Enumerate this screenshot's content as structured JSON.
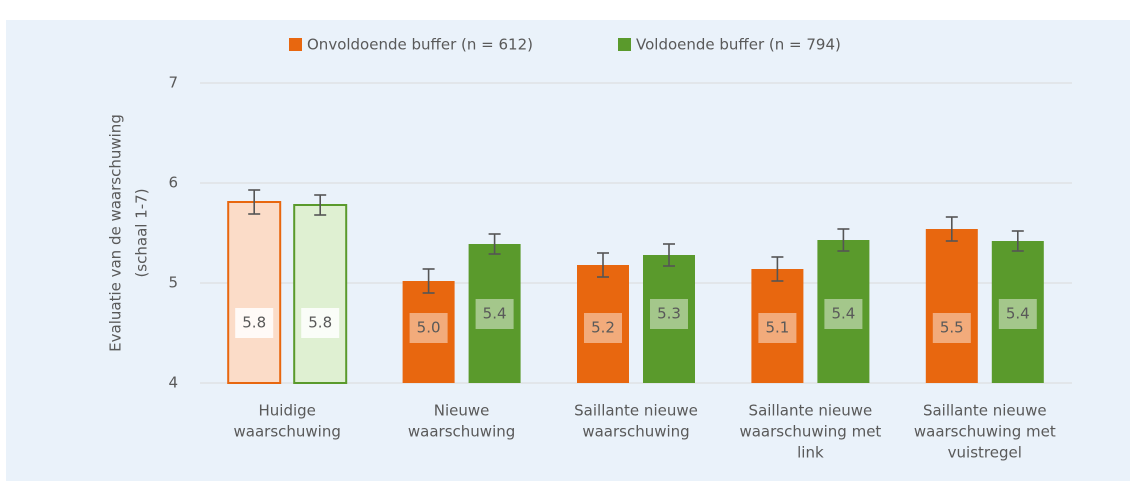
{
  "chart_data": {
    "type": "bar",
    "y_label": [
      "Evaluatie van de waarschuwing",
      "(schaal 1-7)"
    ],
    "categories": [
      [
        "Huidige",
        "waarschuwing"
      ],
      [
        "Nieuwe",
        "waarschuwing"
      ],
      [
        "Saillante nieuwe",
        "waarschuwing"
      ],
      [
        "Saillante nieuwe",
        "waarschuwing met",
        "link"
      ],
      [
        "Saillante nieuwe",
        "waarschuwing met",
        "vuistregel"
      ]
    ],
    "series": [
      {
        "name": "Onvoldoende buffer (n = 612)",
        "color": "#e8670f",
        "fill_colors": [
          "#fbdcc8",
          "#e8670f",
          "#e8670f",
          "#e8670f",
          "#e8670f"
        ],
        "values": [
          5.81,
          5.02,
          5.18,
          5.14,
          5.54
        ],
        "errors": [
          0.12,
          0.12,
          0.12,
          0.12,
          0.12
        ],
        "value_labels": [
          "5.8",
          "5.0",
          "5.2",
          "5.1",
          "5.5"
        ]
      },
      {
        "name": "Voldoende buffer (n = 794)",
        "color": "#5a9a2c",
        "fill_colors": [
          "#dff0d2",
          "#5a9a2c",
          "#5a9a2c",
          "#5a9a2c",
          "#5a9a2c"
        ],
        "values": [
          5.78,
          5.39,
          5.28,
          5.43,
          5.42
        ],
        "errors": [
          0.1,
          0.1,
          0.11,
          0.11,
          0.1
        ],
        "value_labels": [
          "5.8",
          "5.4",
          "5.3",
          "5.4",
          "5.4"
        ]
      }
    ],
    "ylim": [
      4,
      7
    ],
    "yticks": [
      4,
      5,
      6,
      7
    ],
    "grid": true,
    "legend": "top"
  }
}
